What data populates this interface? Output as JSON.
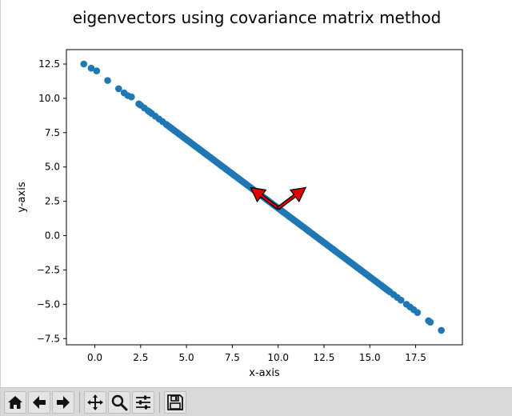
{
  "window": {
    "toolbar": {
      "buttons": [
        {
          "name": "home-icon",
          "tooltip": "Home"
        },
        {
          "name": "back-arrow-icon",
          "tooltip": "Back"
        },
        {
          "name": "forward-arrow-icon",
          "tooltip": "Forward"
        },
        {
          "name": "pan-icon",
          "tooltip": "Pan"
        },
        {
          "name": "zoom-icon",
          "tooltip": "Zoom"
        },
        {
          "name": "subplots-config-icon",
          "tooltip": "Configure subplots"
        },
        {
          "name": "save-icon",
          "tooltip": "Save"
        }
      ]
    }
  },
  "colors": {
    "points": "#1f77b4",
    "arrow_fill": "#e00000",
    "arrow_edge": "#000000",
    "toolbar_bg": "#d9d9d9"
  },
  "chart_data": {
    "type": "scatter",
    "title": "eigenvectors using covariance matrix method",
    "xlabel": "x-axis",
    "ylabel": "y-axis",
    "xlim": [
      -1.55,
      20.05
    ],
    "ylim": [
      -7.95,
      13.55
    ],
    "xticks": [
      0.0,
      2.5,
      5.0,
      7.5,
      10.0,
      12.5,
      15.0,
      17.5
    ],
    "xtick_labels": [
      "0.0",
      "2.5",
      "5.0",
      "7.5",
      "10.0",
      "12.5",
      "15.0",
      "17.5"
    ],
    "yticks": [
      -7.5,
      -5.0,
      -2.5,
      0.0,
      2.5,
      5.0,
      7.5,
      10.0,
      12.5
    ],
    "ytick_labels": [
      "−7.5",
      "−5.0",
      "−2.5",
      "0.0",
      "2.5",
      "5.0",
      "7.5",
      "10.0",
      "12.5"
    ],
    "grid": false,
    "line_fit": {
      "slope": -1.0,
      "intercept": 12.0
    },
    "series": [
      {
        "x": [
          -0.6,
          -0.2,
          0.1,
          0.7,
          1.3,
          1.6,
          1.8,
          2.0,
          2.4,
          2.5,
          2.7,
          2.9,
          3.0,
          3.1,
          3.3,
          3.5,
          3.7,
          3.9,
          4.0,
          4.1,
          4.2,
          4.3,
          4.4,
          4.5,
          4.6,
          4.7,
          4.8,
          4.9,
          5.0,
          5.1,
          5.2,
          5.3,
          5.4,
          5.5,
          5.6,
          5.7,
          5.8,
          5.9,
          6.0,
          6.1,
          6.2,
          6.3,
          6.4,
          6.5,
          6.6,
          6.7,
          6.8,
          6.9,
          7.0,
          7.1,
          7.2,
          7.3,
          7.4,
          7.5,
          7.6,
          7.7,
          7.8,
          7.9,
          8.0,
          8.1,
          8.2,
          8.3,
          8.4,
          8.5,
          8.6,
          8.7,
          8.8,
          8.9,
          9.0,
          9.1,
          9.2,
          9.3,
          9.4,
          9.5,
          9.6,
          9.7,
          9.8,
          9.9,
          10.0,
          10.1,
          10.2,
          10.3,
          10.4,
          10.5,
          10.6,
          10.7,
          10.8,
          10.9,
          11.0,
          11.1,
          11.2,
          11.3,
          11.4,
          11.5,
          11.6,
          11.7,
          11.8,
          11.9,
          12.0,
          12.1,
          12.2,
          12.3,
          12.4,
          12.5,
          12.6,
          12.7,
          12.8,
          12.9,
          13.0,
          13.1,
          13.2,
          13.3,
          13.4,
          13.5,
          13.6,
          13.7,
          13.8,
          13.9,
          14.0,
          14.1,
          14.2,
          14.3,
          14.4,
          14.5,
          14.6,
          14.7,
          14.8,
          14.9,
          15.0,
          15.1,
          15.2,
          15.3,
          15.4,
          15.5,
          15.6,
          15.7,
          15.8,
          15.9,
          16.0,
          16.1,
          16.3,
          16.5,
          16.7,
          17.0,
          17.2,
          17.4,
          17.6,
          18.2,
          18.3,
          18.9
        ],
        "y": [
          12.5,
          12.2,
          12.0,
          11.3,
          10.7,
          10.4,
          10.2,
          10.1,
          9.6,
          9.5,
          9.3,
          9.1,
          9.0,
          8.9,
          8.7,
          8.5,
          8.3,
          8.1,
          8.0,
          7.9,
          7.8,
          7.7,
          7.6,
          7.5,
          7.4,
          7.3,
          7.2,
          7.1,
          7.0,
          6.9,
          6.8,
          6.7,
          6.6,
          6.5,
          6.4,
          6.3,
          6.2,
          6.1,
          6.0,
          5.9,
          5.8,
          5.7,
          5.6,
          5.5,
          5.4,
          5.3,
          5.2,
          5.1,
          5.0,
          4.9,
          4.8,
          4.7,
          4.6,
          4.5,
          4.4,
          4.3,
          4.2,
          4.1,
          4.0,
          3.9,
          3.8,
          3.7,
          3.6,
          3.5,
          3.4,
          3.3,
          3.2,
          3.1,
          3.0,
          2.9,
          2.8,
          2.7,
          2.6,
          2.5,
          2.4,
          2.3,
          2.2,
          2.1,
          2.0,
          1.9,
          1.8,
          1.7,
          1.6,
          1.5,
          1.4,
          1.3,
          1.2,
          1.1,
          1.0,
          0.9,
          0.8,
          0.7,
          0.6,
          0.5,
          0.4,
          0.3,
          0.2,
          0.1,
          0.0,
          -0.1,
          -0.2,
          -0.3,
          -0.4,
          -0.5,
          -0.6,
          -0.7,
          -0.8,
          -0.9,
          -1.0,
          -1.1,
          -1.2,
          -1.3,
          -1.4,
          -1.5,
          -1.6,
          -1.7,
          -1.8,
          -1.9,
          -2.0,
          -2.1,
          -2.2,
          -2.3,
          -2.4,
          -2.5,
          -2.6,
          -2.7,
          -2.8,
          -2.9,
          -3.0,
          -3.1,
          -3.2,
          -3.3,
          -3.4,
          -3.5,
          -3.6,
          -3.7,
          -3.8,
          -3.9,
          -4.0,
          -4.1,
          -4.3,
          -4.5,
          -4.7,
          -5.0,
          -5.2,
          -5.4,
          -5.6,
          -6.2,
          -6.3,
          -6.9
        ]
      }
    ],
    "vectors": [
      {
        "origin": [
          10.0,
          2.0
        ],
        "tip": [
          8.5,
          3.5
        ]
      },
      {
        "origin": [
          10.0,
          2.0
        ],
        "tip": [
          11.5,
          3.5
        ]
      }
    ]
  }
}
